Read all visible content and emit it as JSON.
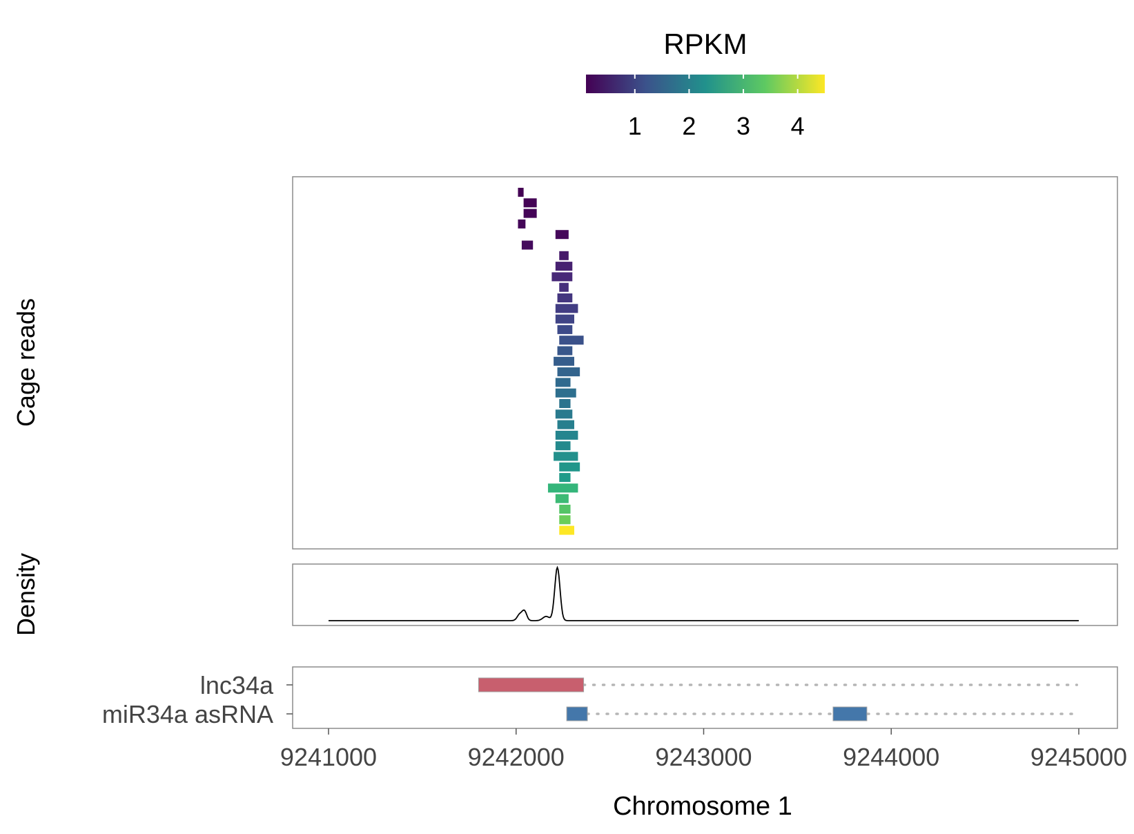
{
  "chart_data": {
    "type": "genomic-track",
    "legend": {
      "title": "RPKM",
      "placement": "top-center",
      "scale": "viridis",
      "range": [
        0.1,
        4.5
      ],
      "ticks": [
        "1",
        "2",
        "3",
        "4"
      ],
      "tick_values": [
        1,
        2,
        3,
        4
      ]
    },
    "x_axis": {
      "label": "Chromosome 1",
      "range": [
        9240800,
        9245200
      ],
      "ticks": [
        9241000,
        9242000,
        9243000,
        9244000,
        9245000
      ],
      "tick_labels": [
        "9241000",
        "9242000",
        "9243000",
        "9244000",
        "9245000"
      ]
    },
    "panels": {
      "reads": {
        "ylabel": "Cage reads",
        "reads": [
          {
            "start": 9242010,
            "end": 9242040,
            "rpkm": 0.1
          },
          {
            "start": 9242040,
            "end": 9242110,
            "rpkm": 0.12
          },
          {
            "start": 9242040,
            "end": 9242110,
            "rpkm": 0.14
          },
          {
            "start": 9242010,
            "end": 9242050,
            "rpkm": 0.16
          },
          {
            "start": 9242210,
            "end": 9242280,
            "rpkm": 0.18
          },
          {
            "start": 9242030,
            "end": 9242090,
            "rpkm": 0.22
          },
          {
            "start": 9242230,
            "end": 9242280,
            "rpkm": 0.4
          },
          {
            "start": 9242210,
            "end": 9242300,
            "rpkm": 0.5
          },
          {
            "start": 9242190,
            "end": 9242300,
            "rpkm": 0.6
          },
          {
            "start": 9242230,
            "end": 9242280,
            "rpkm": 0.7
          },
          {
            "start": 9242220,
            "end": 9242300,
            "rpkm": 0.8
          },
          {
            "start": 9242210,
            "end": 9242330,
            "rpkm": 0.9
          },
          {
            "start": 9242210,
            "end": 9242310,
            "rpkm": 1.0
          },
          {
            "start": 9242220,
            "end": 9242300,
            "rpkm": 1.1
          },
          {
            "start": 9242230,
            "end": 9242360,
            "rpkm": 1.2
          },
          {
            "start": 9242220,
            "end": 9242300,
            "rpkm": 1.3
          },
          {
            "start": 9242200,
            "end": 9242310,
            "rpkm": 1.4
          },
          {
            "start": 9242220,
            "end": 9242340,
            "rpkm": 1.5
          },
          {
            "start": 9242210,
            "end": 9242290,
            "rpkm": 1.6
          },
          {
            "start": 9242210,
            "end": 9242320,
            "rpkm": 1.7
          },
          {
            "start": 9242230,
            "end": 9242290,
            "rpkm": 1.8
          },
          {
            "start": 9242210,
            "end": 9242300,
            "rpkm": 1.9
          },
          {
            "start": 9242220,
            "end": 9242310,
            "rpkm": 2.0
          },
          {
            "start": 9242210,
            "end": 9242330,
            "rpkm": 2.1
          },
          {
            "start": 9242210,
            "end": 9242290,
            "rpkm": 2.2
          },
          {
            "start": 9242200,
            "end": 9242330,
            "rpkm": 2.3
          },
          {
            "start": 9242230,
            "end": 9242340,
            "rpkm": 2.4
          },
          {
            "start": 9242230,
            "end": 9242290,
            "rpkm": 2.5
          },
          {
            "start": 9242170,
            "end": 9242330,
            "rpkm": 3.0
          },
          {
            "start": 9242210,
            "end": 9242280,
            "rpkm": 3.1
          },
          {
            "start": 9242230,
            "end": 9242290,
            "rpkm": 3.3
          },
          {
            "start": 9242230,
            "end": 9242290,
            "rpkm": 3.5
          },
          {
            "start": 9242230,
            "end": 9242310,
            "rpkm": 4.5
          }
        ]
      },
      "density": {
        "ylabel": "Density",
        "x_range": [
          9241000,
          9245000
        ],
        "baseline": 0,
        "peaks": [
          {
            "center": 9242020,
            "sd": 14,
            "height": 0.12
          },
          {
            "center": 9242045,
            "sd": 12,
            "height": 0.17
          },
          {
            "center": 9242160,
            "sd": 18,
            "height": 0.08
          },
          {
            "center": 9242220,
            "sd": 14,
            "height": 1.0
          }
        ]
      },
      "transcripts": {
        "items": [
          {
            "name": "lnc34a",
            "color": "#c85f6e",
            "exons": [
              [
                9241800,
                9242360
              ]
            ],
            "line": [
              9242360,
              9244990
            ]
          },
          {
            "name": "miR34a asRNA",
            "color": "#4477aa",
            "exons": [
              [
                9242270,
                9242380
              ],
              [
                9243690,
                9243870
              ]
            ],
            "line": [
              9242380,
              9244970
            ]
          }
        ]
      }
    }
  }
}
